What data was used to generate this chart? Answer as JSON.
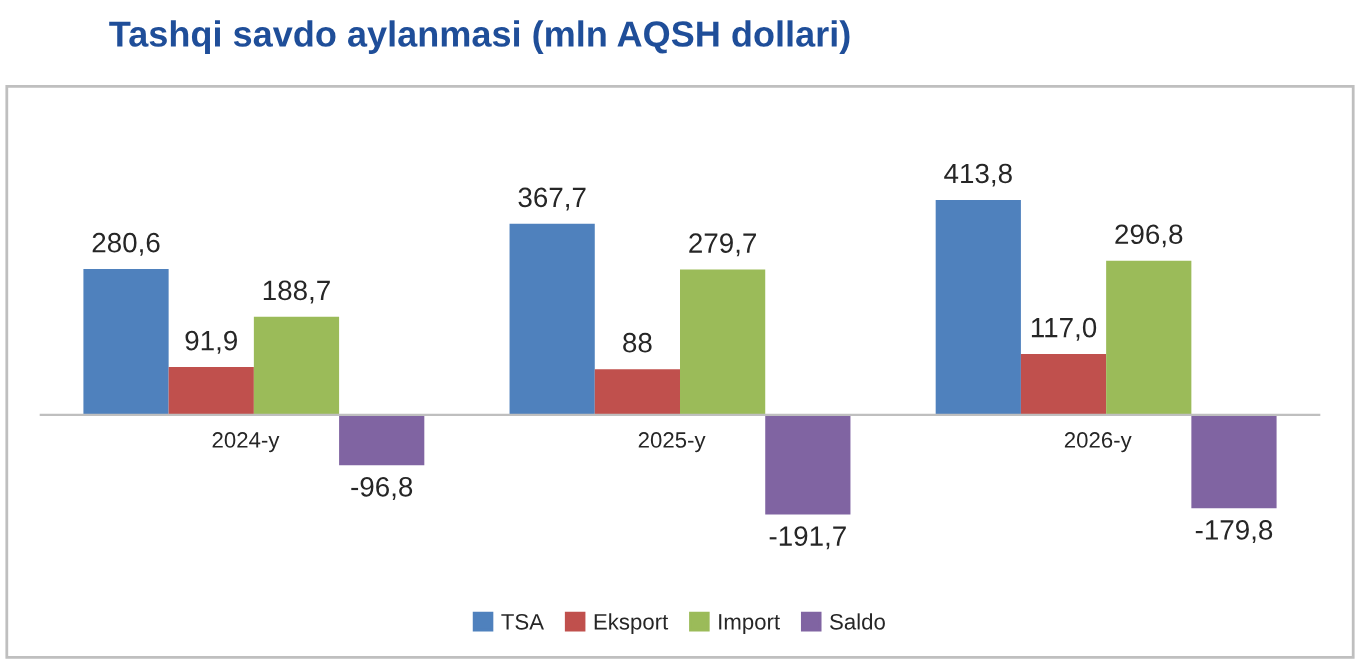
{
  "chart_data": {
    "type": "bar",
    "title": "Tashqi savdo aylanmasi (mln AQSH dollari)",
    "categories": [
      "2024-y",
      "2025-y",
      "2026-y"
    ],
    "series": [
      {
        "name": "TSA",
        "color": "#4f81bd",
        "values": [
          280.6,
          367.7,
          413.8
        ],
        "value_labels": [
          "280,6",
          "367,7",
          "413,8"
        ]
      },
      {
        "name": "Eksport",
        "color": "#c0504d",
        "values": [
          91.9,
          88,
          117.0
        ],
        "value_labels": [
          "91,9",
          "88",
          "117,0"
        ]
      },
      {
        "name": "Import",
        "color": "#9bbb59",
        "values": [
          188.7,
          279.7,
          296.8
        ],
        "value_labels": [
          "188,7",
          "279,7",
          "296,8"
        ]
      },
      {
        "name": "Saldo",
        "color": "#8064a2",
        "values": [
          -96.8,
          -191.7,
          -179.8
        ],
        "value_labels": [
          "-96,8",
          "-191,7",
          "-179,8"
        ]
      }
    ],
    "legend": "bottom",
    "grid": false
  }
}
